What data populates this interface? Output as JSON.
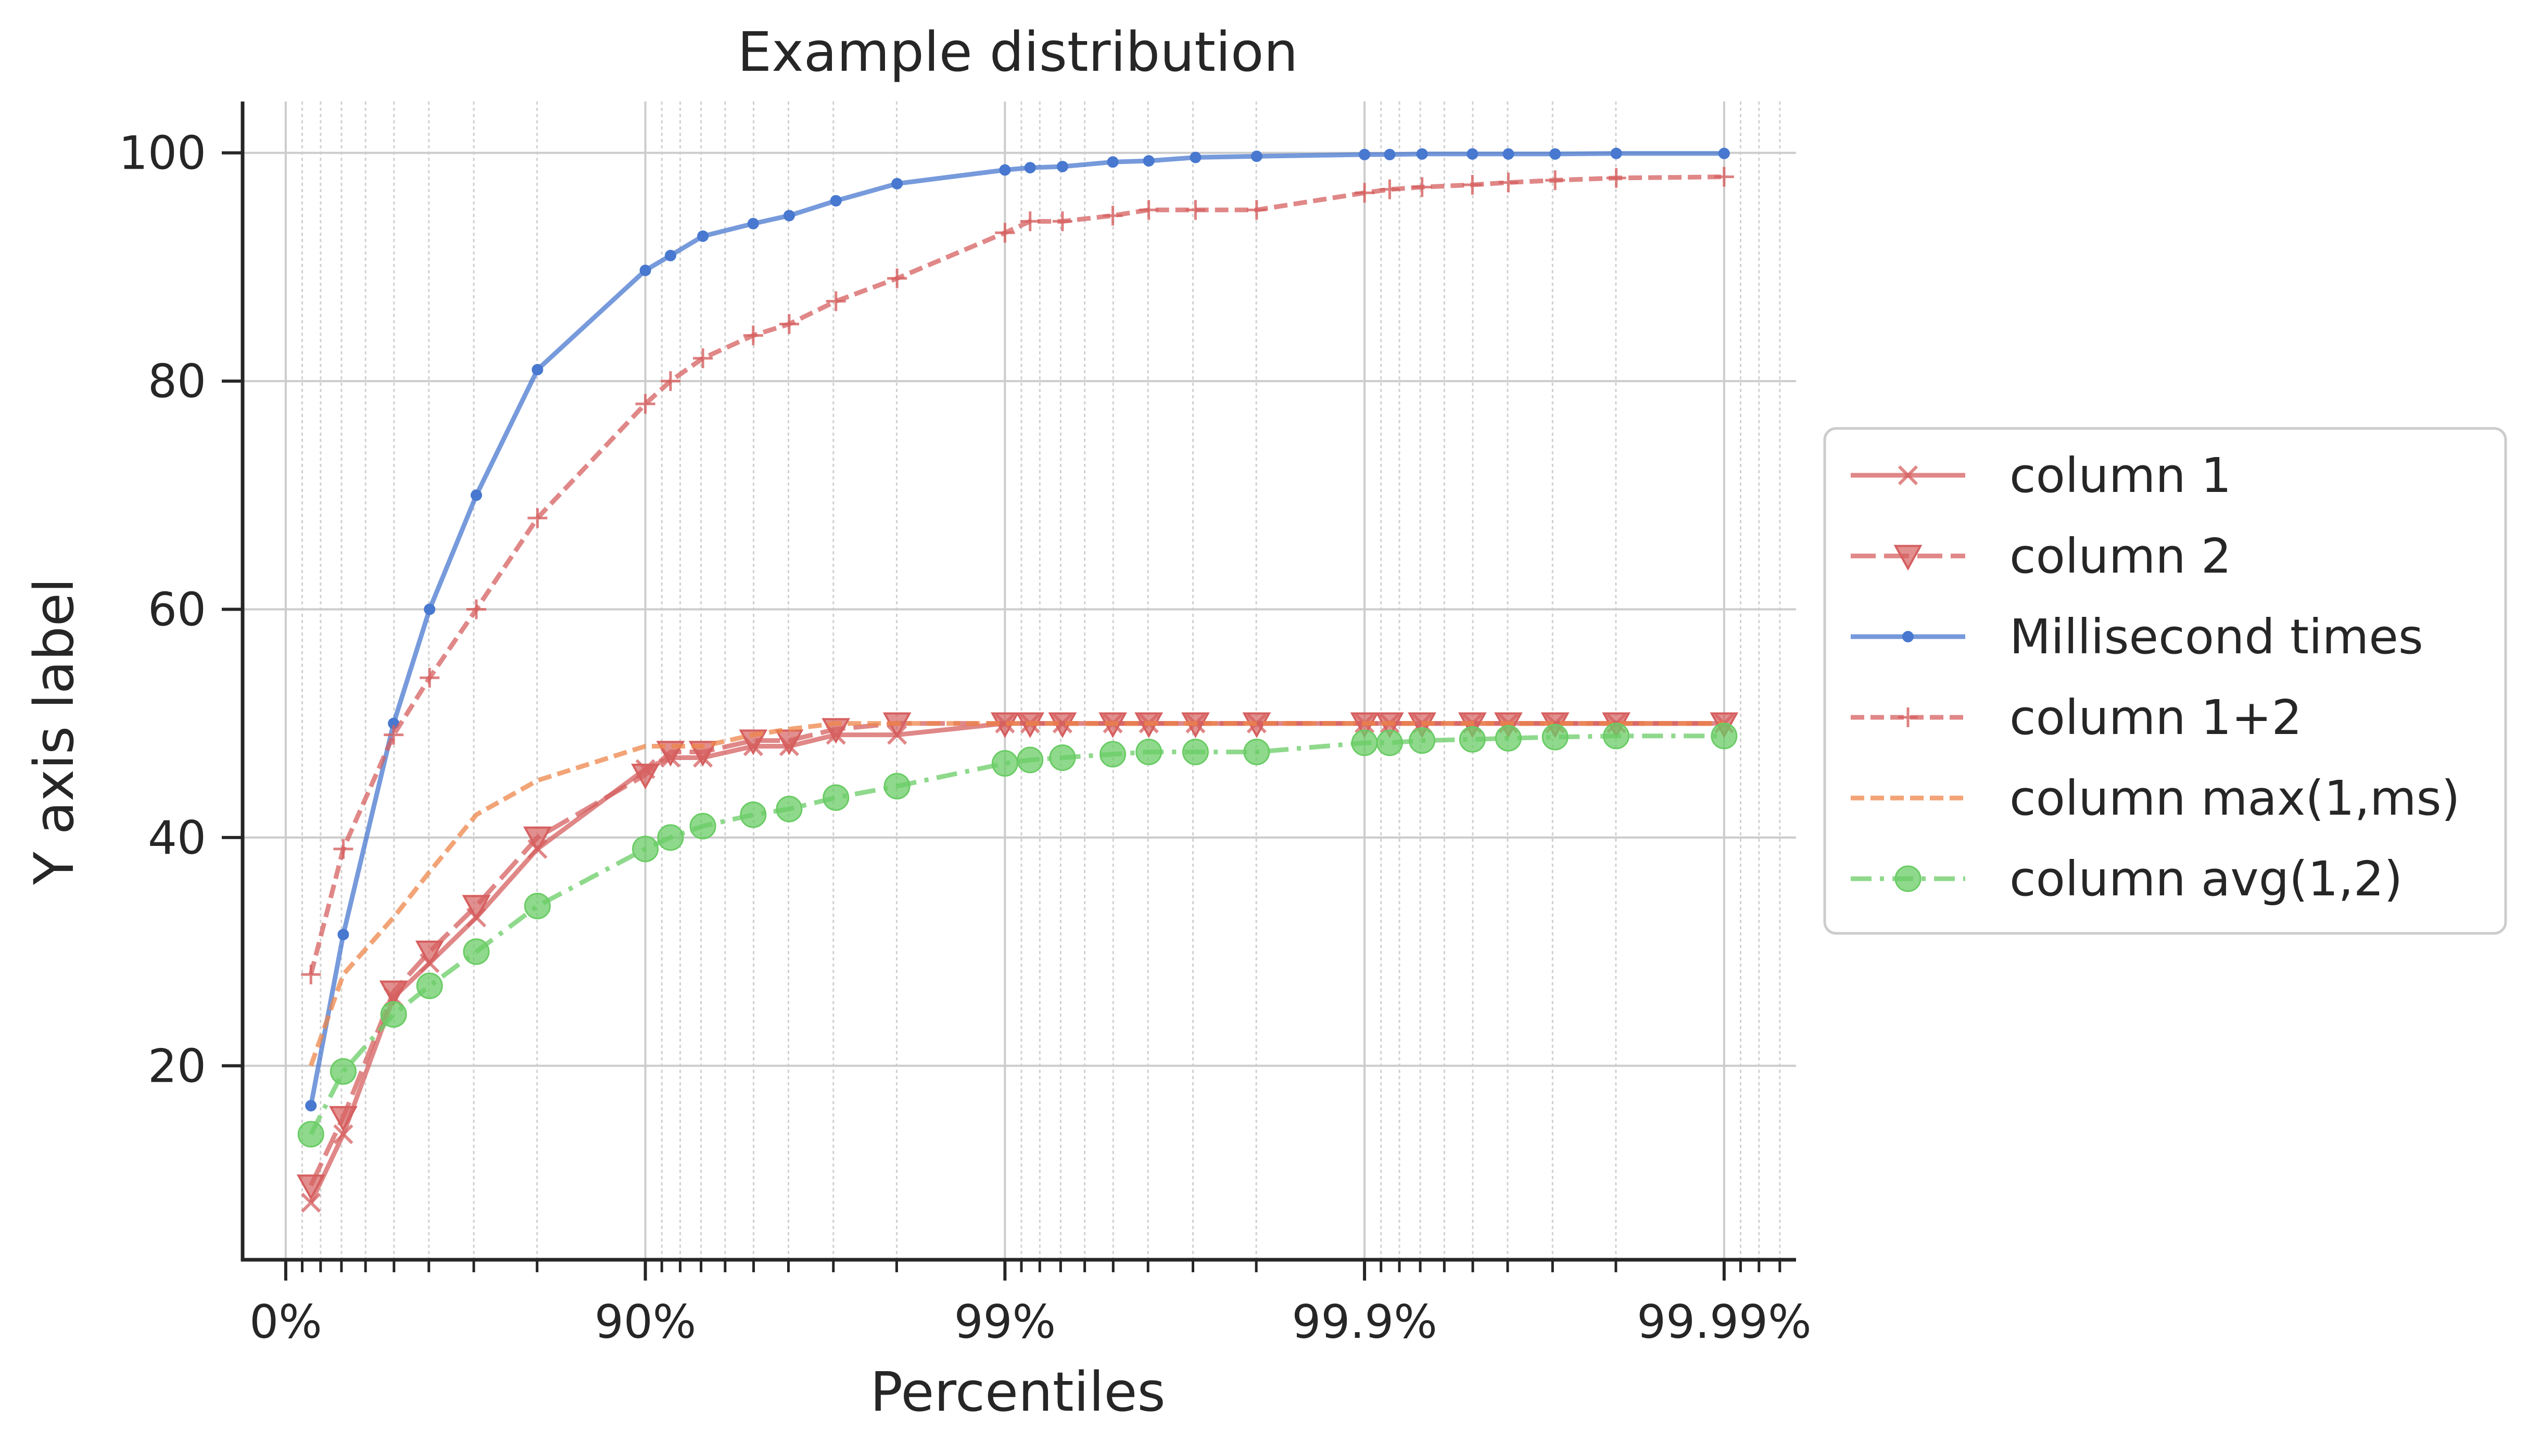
{
  "chart_data": {
    "type": "line",
    "title": "Example distribution",
    "xlabel": "Percentiles",
    "ylabel": "Y axis label",
    "x_scale": "inverse-percentile (log of 1/(1-p))",
    "xlim_decades": [
      -0.12,
      4.2
    ],
    "ylim": [
      3,
      104.5
    ],
    "grid": true,
    "legend_position": "right, outside plot",
    "x_ticks": [
      {
        "decade": 0,
        "label": "0%"
      },
      {
        "decade": 1,
        "label": "90%"
      },
      {
        "decade": 2,
        "label": "99%"
      },
      {
        "decade": 3,
        "label": "99.9%"
      },
      {
        "decade": 4,
        "label": "99.99%"
      }
    ],
    "y_ticks": [
      {
        "value": 20,
        "label": "20"
      },
      {
        "value": 40,
        "label": "40"
      },
      {
        "value": 60,
        "label": "60"
      },
      {
        "value": 80,
        "label": "80"
      },
      {
        "value": 100,
        "label": "100"
      }
    ],
    "x_decades": [
      0.07,
      0.16,
      0.3,
      0.4,
      0.53,
      0.7,
      1.0,
      1.07,
      1.16,
      1.3,
      1.4,
      1.53,
      1.7,
      2.0,
      2.07,
      2.16,
      2.3,
      2.4,
      2.53,
      2.7,
      3.0,
      3.07,
      3.16,
      3.3,
      3.4,
      3.53,
      3.7,
      4.0
    ],
    "series": [
      {
        "name": "column 1",
        "color": "#d65f5f",
        "marker": "x",
        "line": "solid",
        "values": [
          8,
          14,
          26,
          29,
          33,
          39,
          46,
          47,
          47,
          48,
          48,
          49,
          49,
          50,
          50,
          50,
          50,
          50,
          50,
          50,
          50,
          50,
          50,
          50,
          50,
          50,
          50,
          50
        ]
      },
      {
        "name": "column 2",
        "color": "#d65f5f",
        "marker": "triangle-down",
        "line": "dashed-long",
        "values": [
          9.5,
          15.5,
          26.5,
          30,
          34,
          40,
          45.5,
          47.5,
          47.5,
          48.5,
          48.5,
          49.5,
          50,
          50,
          50,
          50,
          50,
          50,
          50,
          50,
          50,
          50,
          50,
          50,
          50,
          50,
          50,
          50
        ]
      },
      {
        "name": "Millisecond times",
        "color": "#4878cf",
        "marker": "dot",
        "line": "solid",
        "values": [
          16.5,
          31.5,
          50,
          60,
          70,
          81,
          89.7,
          91,
          92.7,
          93.8,
          94.5,
          95.8,
          97.3,
          98.5,
          98.7,
          98.8,
          99.2,
          99.3,
          99.6,
          99.7,
          99.85,
          99.85,
          99.9,
          99.9,
          99.9,
          99.9,
          99.95,
          99.95
        ]
      },
      {
        "name": "column 1+2",
        "color": "#d65f5f",
        "marker": "plus",
        "line": "dashed",
        "values": [
          28,
          39,
          49,
          54,
          60,
          68,
          78,
          80,
          82,
          84,
          85,
          87,
          89,
          93,
          94,
          94,
          94.5,
          95,
          95,
          95,
          96.5,
          96.8,
          97,
          97.2,
          97.4,
          97.6,
          97.8,
          97.9
        ]
      },
      {
        "name": "column max(1,ms)",
        "color": "#ee854a",
        "marker": "none",
        "line": "dashed",
        "values": [
          20,
          28,
          33,
          37,
          42,
          45,
          48,
          48,
          48,
          49,
          49.5,
          50,
          50,
          50,
          50,
          50,
          50,
          50,
          50,
          50,
          50,
          50,
          50,
          50,
          50,
          50,
          50,
          50
        ]
      },
      {
        "name": "column avg(1,2)",
        "color": "#6acc65",
        "marker": "circle",
        "line": "dashdot",
        "values": [
          14,
          19.5,
          24.5,
          27,
          30,
          34,
          39,
          40,
          41,
          42,
          42.5,
          43.5,
          44.5,
          46.5,
          46.8,
          47,
          47.3,
          47.5,
          47.5,
          47.5,
          48.3,
          48.3,
          48.5,
          48.6,
          48.7,
          48.8,
          48.9,
          48.9
        ]
      }
    ]
  }
}
